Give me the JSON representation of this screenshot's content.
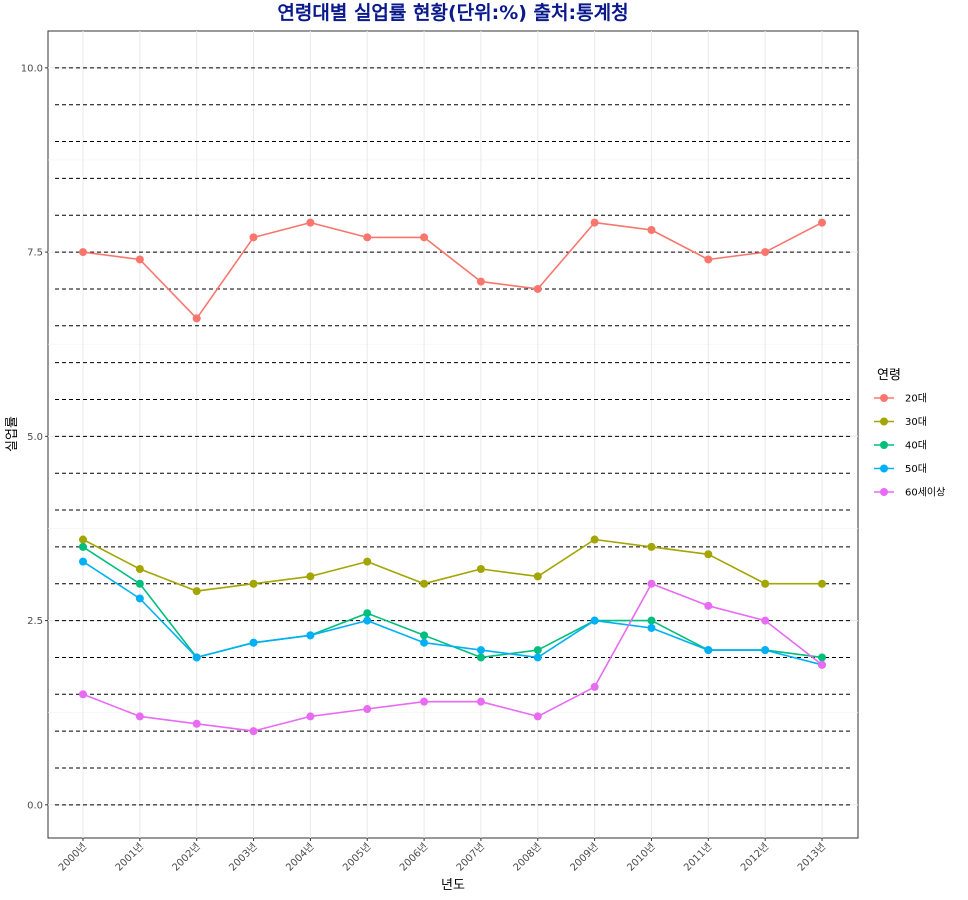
{
  "chart_data": {
    "type": "line",
    "title": "연령대별 실업률 현황(단위:%) 출처:통계청",
    "xlabel": "년도",
    "ylabel": "실업률",
    "categories": [
      "2000년",
      "2001년",
      "2002년",
      "2003년",
      "2004년",
      "2005년",
      "2006년",
      "2007년",
      "2008년",
      "2009년",
      "2010년",
      "2011년",
      "2012년",
      "2013년"
    ],
    "ylim": [
      -0.45,
      10.5
    ],
    "yticks": [
      0,
      2.5,
      5,
      7.5,
      10
    ],
    "ytick_labels": [
      "0.0",
      "2.5",
      "5.0",
      "7.5",
      "10.0"
    ],
    "dashed_lines": [
      0,
      0.5,
      1,
      1.5,
      2,
      2.5,
      3,
      3.5,
      4,
      4.5,
      5,
      5.5,
      6,
      6.5,
      7,
      7.5,
      8,
      8.5,
      9,
      9.5,
      10
    ],
    "grid": true,
    "legend": {
      "title": "연령",
      "position": "right"
    },
    "series": [
      {
        "name": "20대",
        "color": "#f8766d",
        "values": [
          7.5,
          7.4,
          6.6,
          7.7,
          7.9,
          7.7,
          7.7,
          7.1,
          7.0,
          7.9,
          7.8,
          7.4,
          7.5,
          7.9
        ]
      },
      {
        "name": "30대",
        "color": "#a3a500",
        "values": [
          3.6,
          3.2,
          2.9,
          3.0,
          3.1,
          3.3,
          3.0,
          3.2,
          3.1,
          3.6,
          3.5,
          3.4,
          3.0,
          3.0
        ]
      },
      {
        "name": "40대",
        "color": "#00bf7d",
        "values": [
          3.5,
          3.0,
          2.0,
          2.2,
          2.3,
          2.6,
          2.3,
          2.0,
          2.1,
          2.5,
          2.5,
          2.1,
          2.1,
          2.0
        ]
      },
      {
        "name": "50대",
        "color": "#00b0f6",
        "values": [
          3.3,
          2.8,
          2.0,
          2.2,
          2.3,
          2.5,
          2.2,
          2.1,
          2.0,
          2.5,
          2.4,
          2.1,
          2.1,
          1.9
        ]
      },
      {
        "name": "60세이상",
        "color": "#e76bf3",
        "values": [
          1.5,
          1.2,
          1.1,
          1.0,
          1.2,
          1.3,
          1.4,
          1.4,
          1.2,
          1.6,
          3.0,
          2.7,
          2.5,
          1.9
        ]
      }
    ]
  }
}
